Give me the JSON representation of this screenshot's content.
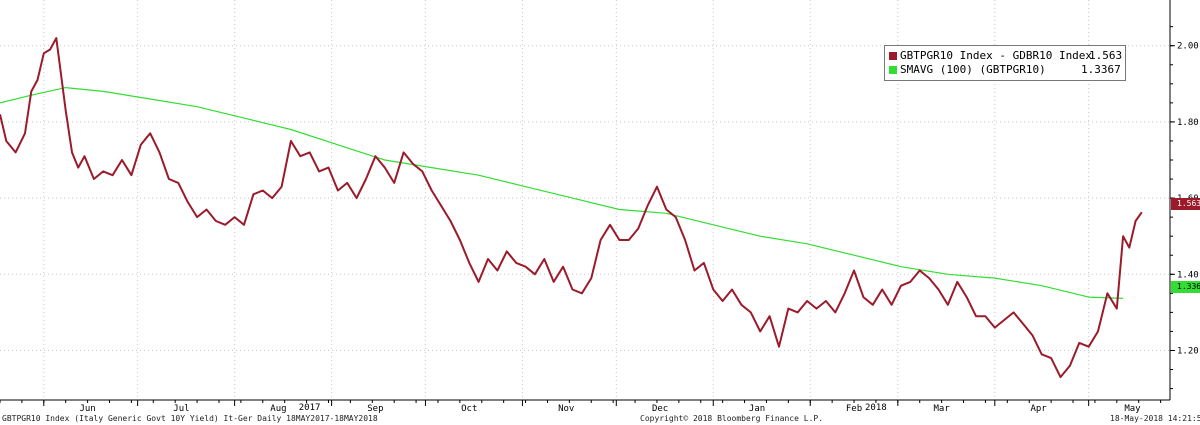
{
  "chart_data": {
    "type": "line",
    "title": "",
    "xlabel": "",
    "ylabel": "",
    "x_tick_labels": [
      "Jun",
      "Jul",
      "Aug",
      "Sep",
      "Oct",
      "Nov",
      "Dec",
      "Jan",
      "Feb",
      "Mar",
      "Apr",
      "May"
    ],
    "year_labels": [
      "2017",
      "2018"
    ],
    "y_tick_labels": [
      "1.20",
      "1.40",
      "1.60",
      "1.80",
      "2.00"
    ],
    "ylim": [
      1.07,
      2.12
    ],
    "grid": true,
    "legend_position": "top-right",
    "series": [
      {
        "name": "GBTPGR10 Index - GDBR10 Index",
        "last_value_label": "1.563",
        "color": "#9b1b2b",
        "x": [
          "2017-05-18",
          "2017-05-20",
          "2017-05-23",
          "2017-05-26",
          "2017-05-28",
          "2017-05-30",
          "2017-06-01",
          "2017-06-03",
          "2017-06-05",
          "2017-06-08",
          "2017-06-10",
          "2017-06-12",
          "2017-06-14",
          "2017-06-17",
          "2017-06-20",
          "2017-06-23",
          "2017-06-26",
          "2017-06-29",
          "2017-07-02",
          "2017-07-05",
          "2017-07-08",
          "2017-07-11",
          "2017-07-14",
          "2017-07-17",
          "2017-07-20",
          "2017-07-23",
          "2017-07-26",
          "2017-07-29",
          "2017-08-01",
          "2017-08-04",
          "2017-08-07",
          "2017-08-10",
          "2017-08-13",
          "2017-08-16",
          "2017-08-19",
          "2017-08-22",
          "2017-08-25",
          "2017-08-28",
          "2017-08-31",
          "2017-09-03",
          "2017-09-06",
          "2017-09-09",
          "2017-09-12",
          "2017-09-15",
          "2017-09-18",
          "2017-09-21",
          "2017-09-24",
          "2017-09-27",
          "2017-09-30",
          "2017-10-03",
          "2017-10-06",
          "2017-10-09",
          "2017-10-12",
          "2017-10-15",
          "2017-10-18",
          "2017-10-21",
          "2017-10-24",
          "2017-10-27",
          "2017-10-30",
          "2017-11-02",
          "2017-11-05",
          "2017-11-08",
          "2017-11-11",
          "2017-11-14",
          "2017-11-17",
          "2017-11-20",
          "2017-11-23",
          "2017-11-26",
          "2017-11-29",
          "2017-12-02",
          "2017-12-05",
          "2017-12-08",
          "2017-12-11",
          "2017-12-14",
          "2017-12-17",
          "2017-12-20",
          "2017-12-23",
          "2017-12-26",
          "2017-12-29",
          "2018-01-01",
          "2018-01-04",
          "2018-01-07",
          "2018-01-10",
          "2018-01-13",
          "2018-01-16",
          "2018-01-19",
          "2018-01-22",
          "2018-01-25",
          "2018-01-28",
          "2018-01-31",
          "2018-02-03",
          "2018-02-06",
          "2018-02-09",
          "2018-02-12",
          "2018-02-15",
          "2018-02-18",
          "2018-02-21",
          "2018-02-24",
          "2018-02-27",
          "2018-03-02",
          "2018-03-05",
          "2018-03-08",
          "2018-03-11",
          "2018-03-14",
          "2018-03-17",
          "2018-03-20",
          "2018-03-23",
          "2018-03-26",
          "2018-03-29",
          "2018-04-01",
          "2018-04-04",
          "2018-04-07",
          "2018-04-10",
          "2018-04-13",
          "2018-04-16",
          "2018-04-19",
          "2018-04-22",
          "2018-04-25",
          "2018-04-28",
          "2018-05-01",
          "2018-05-04",
          "2018-05-07",
          "2018-05-10",
          "2018-05-12",
          "2018-05-14",
          "2018-05-16",
          "2018-05-18"
        ],
        "y": [
          1.82,
          1.75,
          1.72,
          1.77,
          1.88,
          1.91,
          1.98,
          1.99,
          2.02,
          1.83,
          1.72,
          1.68,
          1.71,
          1.65,
          1.67,
          1.66,
          1.7,
          1.66,
          1.74,
          1.77,
          1.72,
          1.65,
          1.64,
          1.59,
          1.55,
          1.57,
          1.54,
          1.53,
          1.55,
          1.53,
          1.61,
          1.62,
          1.6,
          1.63,
          1.75,
          1.71,
          1.72,
          1.67,
          1.68,
          1.62,
          1.64,
          1.6,
          1.65,
          1.71,
          1.68,
          1.64,
          1.72,
          1.69,
          1.67,
          1.62,
          1.58,
          1.54,
          1.49,
          1.43,
          1.38,
          1.44,
          1.41,
          1.46,
          1.43,
          1.42,
          1.4,
          1.44,
          1.38,
          1.42,
          1.36,
          1.35,
          1.39,
          1.49,
          1.53,
          1.49,
          1.49,
          1.52,
          1.58,
          1.63,
          1.57,
          1.55,
          1.49,
          1.41,
          1.43,
          1.36,
          1.33,
          1.36,
          1.32,
          1.3,
          1.25,
          1.29,
          1.21,
          1.31,
          1.3,
          1.33,
          1.31,
          1.33,
          1.3,
          1.35,
          1.41,
          1.34,
          1.32,
          1.36,
          1.32,
          1.37,
          1.38,
          1.41,
          1.39,
          1.36,
          1.32,
          1.38,
          1.34,
          1.29,
          1.29,
          1.26,
          1.28,
          1.3,
          1.27,
          1.24,
          1.19,
          1.18,
          1.13,
          1.16,
          1.22,
          1.21,
          1.25,
          1.35,
          1.31,
          1.5,
          1.47,
          1.54,
          1.563
        ]
      },
      {
        "name": "SMAVG (100) (GBTPGR10)",
        "last_value_label": "1.3367",
        "color": "#33dd33",
        "x": [
          "2017-05-18",
          "2017-05-28",
          "2017-06-08",
          "2017-06-20",
          "2017-07-05",
          "2017-07-20",
          "2017-08-04",
          "2017-08-19",
          "2017-09-03",
          "2017-09-18",
          "2017-10-03",
          "2017-10-18",
          "2017-11-02",
          "2017-11-17",
          "2017-12-02",
          "2017-12-17",
          "2018-01-01",
          "2018-01-16",
          "2018-01-31",
          "2018-02-15",
          "2018-03-02",
          "2018-03-17",
          "2018-04-01",
          "2018-04-16",
          "2018-05-01",
          "2018-05-12"
        ],
        "y": [
          1.85,
          1.87,
          1.89,
          1.88,
          1.86,
          1.84,
          1.81,
          1.78,
          1.74,
          1.7,
          1.68,
          1.66,
          1.63,
          1.6,
          1.57,
          1.56,
          1.53,
          1.5,
          1.48,
          1.45,
          1.42,
          1.4,
          1.39,
          1.37,
          1.34,
          1.3367
        ]
      }
    ]
  },
  "legend": {
    "items": [
      {
        "label": "GBTPGR10 Index - GDBR10 Index",
        "value": "1.563",
        "color": "#9b1b2b"
      },
      {
        "label": "SMAVG (100) (GBTPGR10)",
        "value": "1.3367",
        "color": "#33dd33"
      }
    ]
  },
  "last_labels": {
    "spread": "1.563",
    "sma": "1.3367"
  },
  "footer": {
    "left": "GBTPGR10 Index (Italy Generic Govt 10Y Yield) It-Ger  Daily 18MAY2017-18MAY2018",
    "center": "Copyright© 2018 Bloomberg Finance L.P.",
    "right": "18-May-2018 14:21:56"
  }
}
